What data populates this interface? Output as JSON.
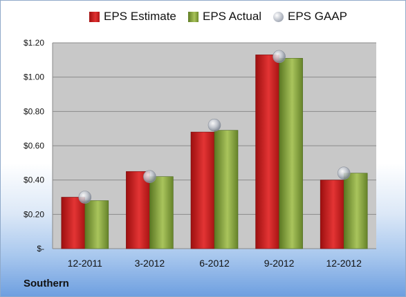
{
  "chart_data": {
    "type": "bar",
    "categories": [
      "12-2011",
      "3-2012",
      "6-2012",
      "9-2012",
      "12-2012"
    ],
    "series": [
      {
        "name": "EPS Estimate",
        "values": [
          0.3,
          0.45,
          0.68,
          1.13,
          0.4
        ],
        "color": "#c81e1e"
      },
      {
        "name": "EPS Actual",
        "values": [
          0.28,
          0.42,
          0.69,
          1.11,
          0.44
        ],
        "color": "#8aa83e"
      },
      {
        "name": "EPS GAAP",
        "values": [
          0.3,
          0.42,
          0.72,
          1.12,
          0.44
        ],
        "color": "#b9bec8",
        "marker": "circle"
      }
    ],
    "ylim": [
      0,
      1.2
    ],
    "yticks": [
      0,
      0.2,
      0.4,
      0.6,
      0.8,
      1.0,
      1.2
    ],
    "ytick_labels": [
      "$-",
      "$0.20",
      "$0.40",
      "$0.60",
      "$0.80",
      "$1.00",
      "$1.20"
    ],
    "grid": true,
    "legend_position": "top"
  },
  "footer": {
    "company": "Southern"
  },
  "colors": {
    "plot_background": "#c8c8c8",
    "gridline": "#8a8a8a"
  }
}
